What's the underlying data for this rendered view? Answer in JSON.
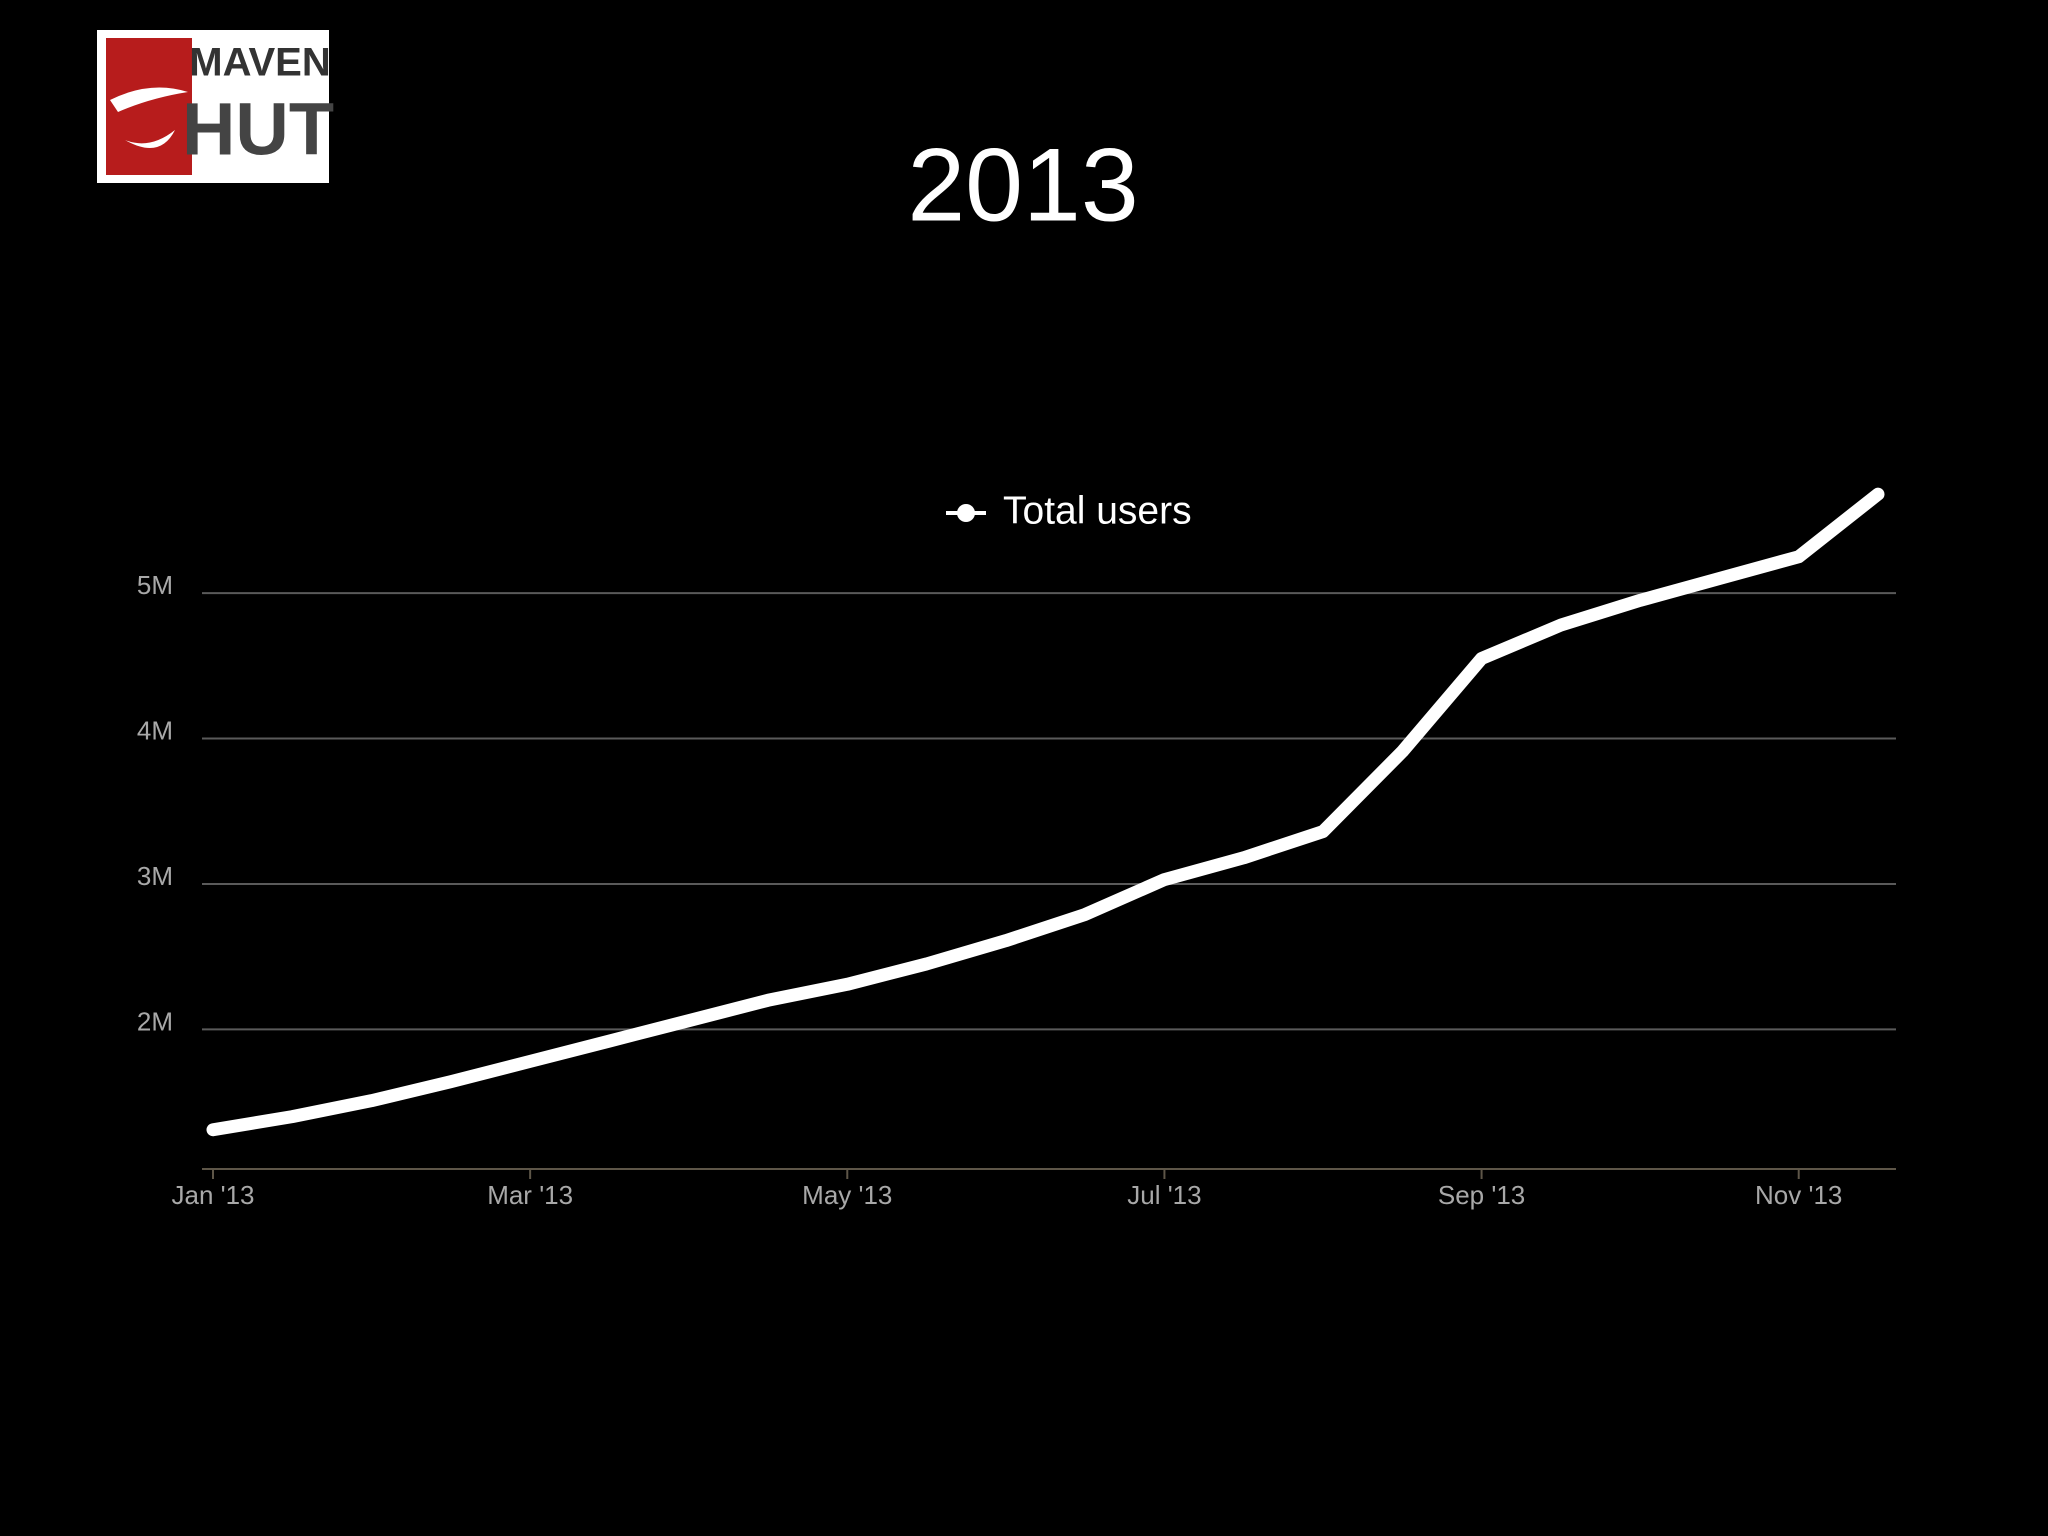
{
  "logo": {
    "line1": "MAVEN",
    "line2": "HUT"
  },
  "chart_data": {
    "type": "line",
    "title": "2013",
    "categories": [
      "Jan '13",
      null,
      null,
      null,
      "Mar '13",
      null,
      null,
      null,
      "May '13",
      null,
      null,
      null,
      "Jul '13",
      null,
      null,
      null,
      "Sep '13",
      null,
      null,
      null,
      "Nov '13",
      null
    ],
    "series": [
      {
        "name": "Total users",
        "color": "#ffffff",
        "values": [
          1.31,
          1.4,
          1.51,
          1.64,
          1.78,
          1.92,
          2.06,
          2.2,
          2.31,
          2.45,
          2.61,
          2.79,
          3.03,
          3.18,
          3.36,
          3.91,
          4.55,
          4.78,
          4.95,
          5.1,
          5.25,
          5.68
        ]
      }
    ],
    "ylim": [
      1.04,
      5.75
    ],
    "yticks": [
      {
        "value": 2,
        "label": "2M"
      },
      {
        "value": 3,
        "label": "3M"
      },
      {
        "value": 4,
        "label": "4M"
      },
      {
        "value": 5,
        "label": "5M"
      }
    ],
    "grid": true,
    "legend": "top"
  }
}
